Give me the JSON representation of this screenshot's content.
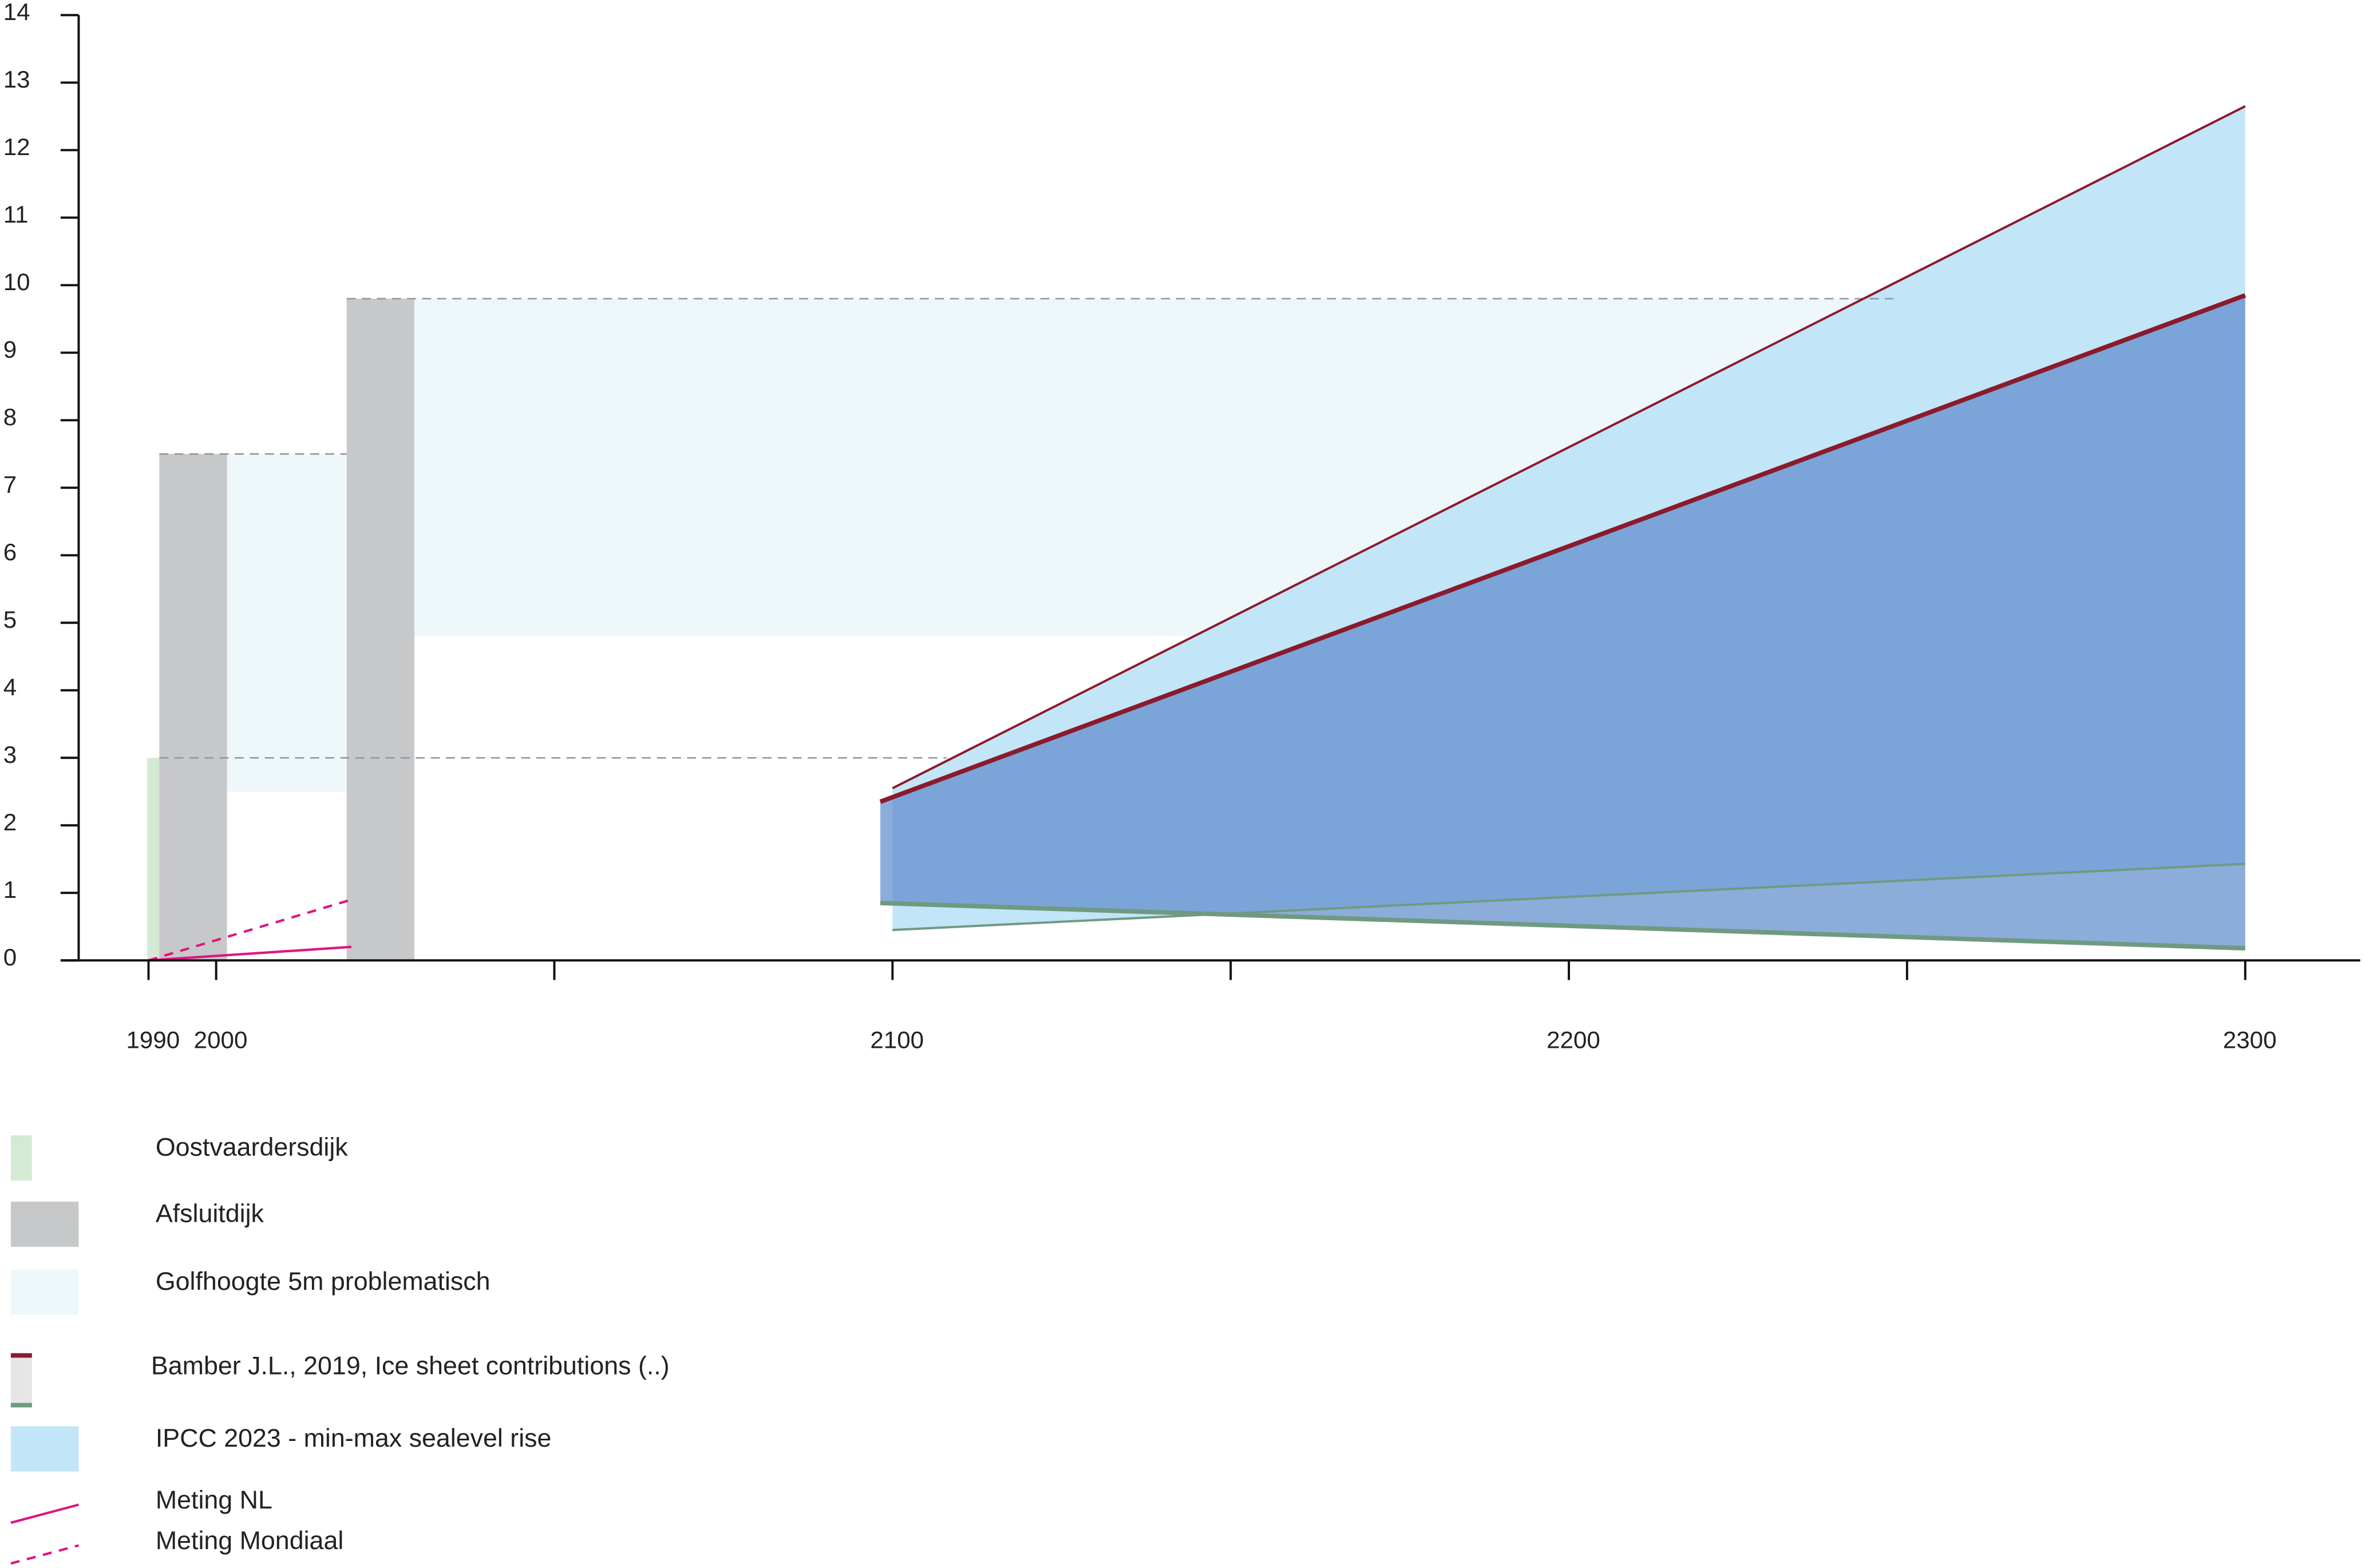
{
  "chart_data": {
    "type": "composite",
    "xlim": [
      1977,
      2317
    ],
    "ylim": [
      0,
      14
    ],
    "xticks": [
      1990,
      2000,
      2100,
      2200,
      2300
    ],
    "xminorticks": [
      2050,
      2150,
      2250
    ],
    "yticks": [
      0,
      1,
      2,
      3,
      4,
      5,
      6,
      7,
      8,
      9,
      10,
      11,
      12,
      13,
      14
    ],
    "reference_lines": [
      {
        "y": 3,
        "x": [
          1991.6,
          2108
        ]
      },
      {
        "y": 7.5,
        "x": [
          1991.6,
          2019.3
        ]
      },
      {
        "y": 9.8,
        "x": [
          2019.3,
          2248
        ]
      }
    ],
    "series": [
      {
        "name": "Oostvaardersdijk",
        "type": "bar",
        "color": "#d4ead5",
        "x0": [
          1989.8
        ],
        "x1": [
          1993.5
        ],
        "values": [
          3
        ]
      },
      {
        "name": "Afsluitdijk",
        "type": "bar",
        "color": "#c7c8ca",
        "x0": [
          1991.6,
          2019.3
        ],
        "x1": [
          2001.6,
          2029.3
        ],
        "values": [
          7.5,
          9.8
        ]
      },
      {
        "name": "Golfhoogte 5m problematisch",
        "type": "band",
        "color": "#eef7fa",
        "x0": [
          2001.6,
          2029.3
        ],
        "x1": [
          2019.3,
          2252
        ],
        "low": [
          2.5,
          4.8
        ],
        "high": [
          7.5,
          9.8
        ]
      },
      {
        "name": "IPCC 2023 - min-max sealevel rise",
        "type": "area",
        "color": "#c2e5f7",
        "x": [
          2100,
          2300
        ],
        "low": [
          0.45,
          1.43
        ],
        "high": [
          2.55,
          12.65
        ],
        "high_color": "#8b1a2b",
        "low_color": "#6f9a80"
      },
      {
        "name": "Bamber J.L., 2019, Ice sheet contributions (..)",
        "type": "area",
        "color": "#5f8ccc",
        "x": [
          2098.2,
          2300
        ],
        "low": [
          0.85,
          0.18
        ],
        "high": [
          2.35,
          9.85
        ],
        "high_color": "#8b1a2b",
        "low_color": "#6f9a80"
      },
      {
        "name": "Meting NL",
        "type": "line",
        "color": "#e0157f",
        "dash": false,
        "x": [
          1990,
          2020
        ],
        "values": [
          0,
          0.2
        ]
      },
      {
        "name": "Meting Mondiaal",
        "type": "line",
        "color": "#e0157f",
        "dash": true,
        "x": [
          1990,
          2020
        ],
        "values": [
          0,
          0.9
        ]
      }
    ],
    "legend_order": [
      0,
      1,
      2,
      4,
      3,
      5,
      6
    ]
  }
}
